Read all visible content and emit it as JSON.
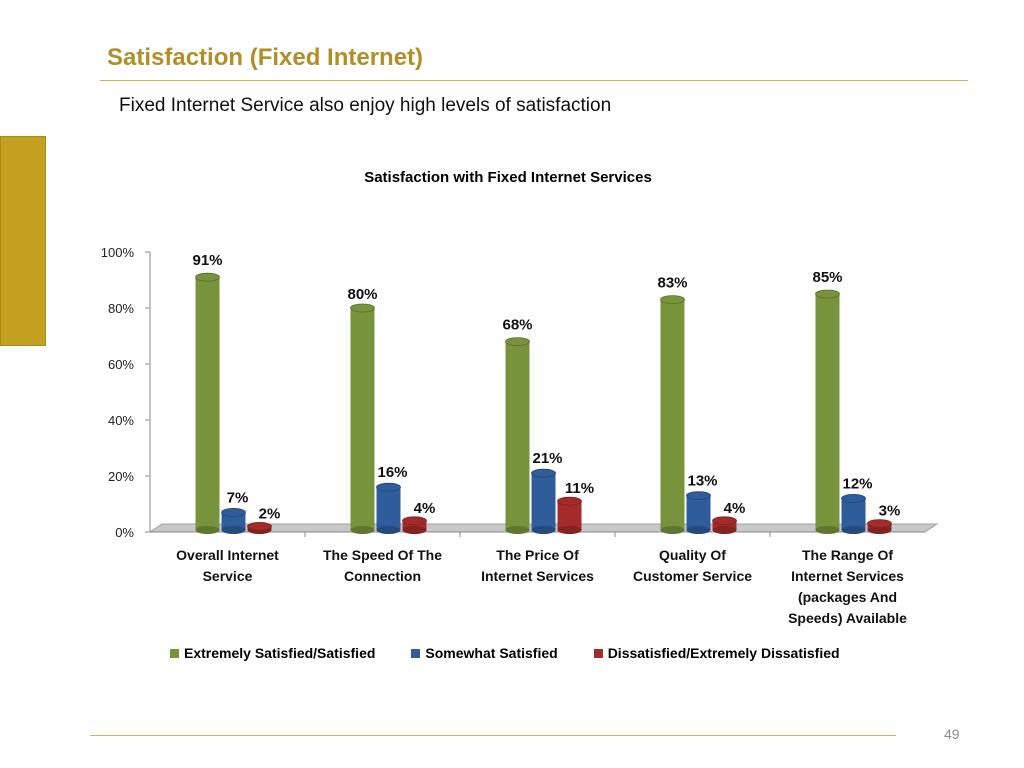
{
  "slide": {
    "title": "Satisfaction (Fixed Internet)",
    "subtitle": "Fixed Internet Service also enjoy high levels of satisfaction",
    "page_number": "49"
  },
  "chart_data": {
    "type": "bar",
    "title": "Satisfaction with Fixed Internet Services",
    "xlabel": "",
    "ylabel": "",
    "ylim": [
      0,
      100
    ],
    "yticks": [
      "0%",
      "20%",
      "40%",
      "60%",
      "80%",
      "100%"
    ],
    "categories": [
      [
        "Overall Internet",
        "Service"
      ],
      [
        "The Speed Of The",
        "Connection"
      ],
      [
        "The Price Of",
        "Internet Services"
      ],
      [
        "Quality Of",
        "Customer Service"
      ],
      [
        "The Range Of",
        "Internet Services",
        "(packages And",
        "Speeds) Available"
      ]
    ],
    "series": [
      {
        "name": "Extremely Satisfied/Satisfied",
        "values": [
          91,
          80,
          68,
          83,
          85
        ],
        "color": "#77933c"
      },
      {
        "name": "Somewhat Satisfied",
        "values": [
          7,
          16,
          21,
          13,
          12
        ],
        "color": "#2f5c9a"
      },
      {
        "name": "Dissatisfied/Extremely Dissatisfied",
        "values": [
          2,
          4,
          11,
          4,
          3
        ],
        "color": "#a52a2a"
      }
    ],
    "legend_position": "bottom",
    "grid": false
  }
}
